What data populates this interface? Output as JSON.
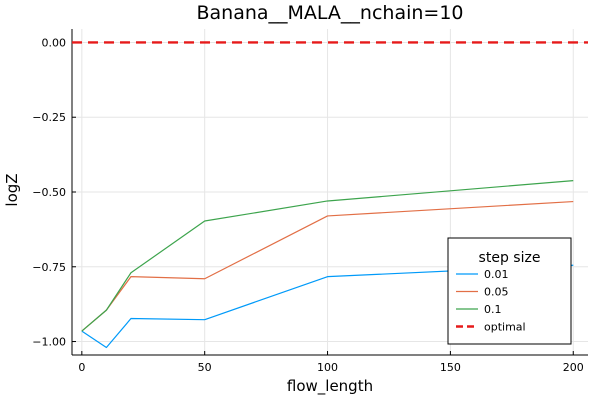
{
  "chart_data": {
    "type": "line",
    "title": "Banana__MALA__nchain=10",
    "xlabel": "flow_length",
    "ylabel": "logZ",
    "xlim": [
      -4,
      206
    ],
    "ylim": [
      -1.045,
      0.045
    ],
    "x_ticks": [
      0,
      50,
      100,
      150,
      200
    ],
    "x_tick_labels": [
      "0",
      "50",
      "100",
      "150",
      "200"
    ],
    "y_ticks": [
      0.0,
      -0.25,
      -0.5,
      -0.75,
      -1.0
    ],
    "y_tick_labels": [
      "0.00",
      "−0.25",
      "−0.50",
      "−0.75",
      "−1.00"
    ],
    "grid": true,
    "legend": {
      "title": "step size",
      "position": "bottom-right"
    },
    "x": [
      0,
      10,
      20,
      50,
      100,
      200
    ],
    "series": [
      {
        "name": "0.01",
        "color": "#009af9",
        "values": [
          -0.965,
          -1.02,
          -0.923,
          -0.927,
          -0.783,
          -0.745
        ]
      },
      {
        "name": "0.05",
        "color": "#e26f46",
        "values": [
          -0.965,
          -0.895,
          -0.783,
          -0.79,
          -0.58,
          -0.532
        ]
      },
      {
        "name": "0.1",
        "color": "#3da44d",
        "values": [
          -0.965,
          -0.895,
          -0.77,
          -0.597,
          -0.53,
          -0.462
        ]
      }
    ],
    "reference_line": {
      "name": "optimal",
      "y": 0.0,
      "color": "#e61a1a",
      "style": "dashed"
    }
  }
}
